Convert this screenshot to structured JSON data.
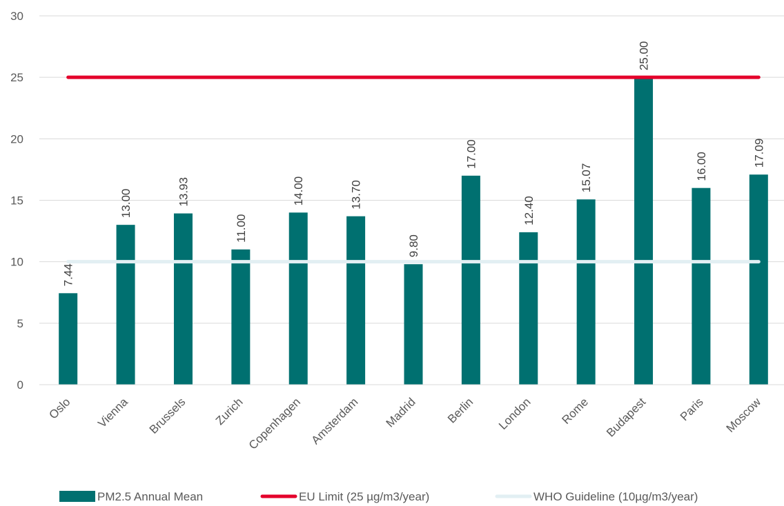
{
  "chart_data": {
    "type": "bar",
    "categories": [
      "Oslo",
      "Vienna",
      "Brussels",
      "Zurich",
      "Copenhagen",
      "Amsterdam",
      "Madrid",
      "Berlin",
      "London",
      "Rome",
      "Budapest",
      "Paris",
      "Moscow"
    ],
    "series": [
      {
        "name": "PM2.5 Annual Mean",
        "type": "bar",
        "color": "#007070",
        "values": [
          7.44,
          13.0,
          13.93,
          11.0,
          14.0,
          13.7,
          9.8,
          17.0,
          12.4,
          15.07,
          25.0,
          16.0,
          17.09
        ],
        "data_labels": [
          "7.44",
          "13.00",
          "13.93",
          "11.00",
          "14.00",
          "13.70",
          "9.80",
          "17.00",
          "12.40",
          "15.07",
          "25.00",
          "16.00",
          "17.09"
        ]
      },
      {
        "name": "EU Limit (25 µg/m3/year)",
        "type": "line",
        "color": "#E4002B",
        "values": [
          25,
          25,
          25,
          25,
          25,
          25,
          25,
          25,
          25,
          25,
          25,
          25,
          25
        ]
      },
      {
        "name": "WHO Guideline (10µg/m3/year)",
        "type": "line",
        "color": "#E2EFF3",
        "values": [
          10,
          10,
          10,
          10,
          10,
          10,
          10,
          10,
          10,
          10,
          10,
          10,
          10
        ]
      }
    ],
    "ylim": [
      0,
      30
    ],
    "yticks": [
      "0",
      "5",
      "10",
      "15",
      "20",
      "25",
      "30"
    ],
    "grid": true,
    "legend_position": "bottom",
    "title": "",
    "xlabel": "",
    "ylabel": ""
  }
}
